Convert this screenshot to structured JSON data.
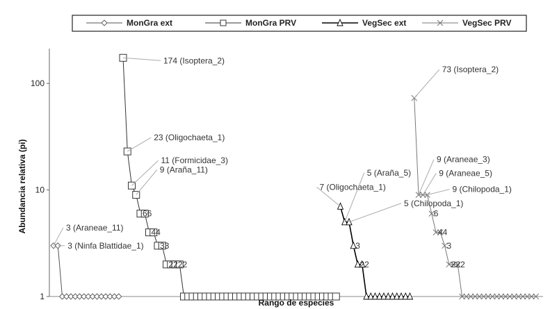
{
  "chart_data": {
    "type": "line",
    "xlabel": "Rango de especies",
    "ylabel": "Abundancia relativa (pi)",
    "y_scale": "log",
    "ylim": [
      1,
      200
    ],
    "y_ticks": [
      "1",
      "10",
      "100"
    ],
    "grid": false,
    "legend_position": "top",
    "series": [
      {
        "name": "MonGra ext",
        "marker": "diamond",
        "color": "#555555",
        "x": [
          1,
          2,
          3,
          4,
          5,
          6,
          7,
          8,
          9,
          10,
          11,
          12,
          13,
          14,
          15,
          16
        ],
        "values": [
          3,
          3,
          1,
          1,
          1,
          1,
          1,
          1,
          1,
          1,
          1,
          1,
          1,
          1,
          1,
          1
        ]
      },
      {
        "name": "MonGra PRV",
        "marker": "square",
        "color": "#333333",
        "x": [
          17,
          18,
          19,
          20,
          21,
          22,
          23,
          24,
          25,
          26,
          27,
          28,
          29,
          30,
          31,
          32,
          33,
          34,
          35,
          36,
          37,
          38,
          39,
          40,
          41,
          42,
          43,
          44,
          45,
          46,
          47,
          48,
          49,
          50,
          51,
          52,
          53,
          54,
          55,
          56,
          57,
          58,
          59,
          60,
          61,
          62,
          63,
          64,
          65,
          66
        ],
        "values": [
          174,
          23,
          11,
          9,
          6,
          6,
          4,
          4,
          3,
          3,
          2,
          2,
          2,
          2,
          1,
          1,
          1,
          1,
          1,
          1,
          1,
          1,
          1,
          1,
          1,
          1,
          1,
          1,
          1,
          1,
          1,
          1,
          1,
          1,
          1,
          1,
          1,
          1,
          1,
          1,
          1,
          1,
          1,
          1,
          1,
          1,
          1,
          1,
          1,
          1
        ]
      },
      {
        "name": "VegSec ext",
        "marker": "triangle",
        "color": "#000000",
        "x": [
          67,
          68,
          69,
          70,
          71,
          72,
          73,
          74,
          75,
          76,
          77,
          78,
          79,
          80,
          81,
          82,
          83
        ],
        "values": [
          7,
          5,
          5,
          3,
          2,
          2,
          1,
          1,
          1,
          1,
          1,
          1,
          1,
          1,
          1,
          1,
          1
        ]
      },
      {
        "name": "VegSec PRV",
        "marker": "cross",
        "color": "#777777",
        "x": [
          84,
          85,
          86,
          87,
          88,
          89,
          90,
          91,
          92,
          93,
          94,
          95,
          96,
          97,
          98,
          99,
          100,
          101,
          102,
          103,
          104,
          105,
          106,
          107,
          108,
          109,
          110,
          111,
          112
        ],
        "values": [
          73,
          9,
          9,
          9,
          6,
          4,
          4,
          3,
          2,
          2,
          2,
          1,
          1,
          1,
          1,
          1,
          1,
          1,
          1,
          1,
          1,
          1,
          1,
          1,
          1,
          1,
          1,
          1,
          1
        ]
      }
    ],
    "annotations": [
      {
        "text": "3 (Araneae_11)",
        "series": 0,
        "point": 0,
        "dx": 18,
        "dy": -26
      },
      {
        "text": "3 (Ninfa Blattidae_1)",
        "series": 0,
        "point": 1,
        "dx": 14,
        "dy": 0
      },
      {
        "text": "174 (Isoptera_2)",
        "series": 1,
        "point": 0,
        "dx": 58,
        "dy": 4
      },
      {
        "text": "23 (Oligochaeta_1)",
        "series": 1,
        "point": 1,
        "dx": 38,
        "dy": -20
      },
      {
        "text": "11 (Formicidae_3)",
        "series": 1,
        "point": 2,
        "dx": 42,
        "dy": -36
      },
      {
        "text": "9 (Araña_11)",
        "series": 1,
        "point": 3,
        "dx": 34,
        "dy": -36
      },
      {
        "text": "7 (Oligochaeta_1)",
        "series": 2,
        "point": 0,
        "dx": -30,
        "dy": -28
      },
      {
        "text": "5 (Araña_5)",
        "series": 2,
        "point": 1,
        "dx": 32,
        "dy": -71
      },
      {
        "text": "5 (Chilopoda_1)",
        "series": 2,
        "point": 2,
        "dx": 79,
        "dy": -27
      },
      {
        "text": "73 (Isoptera_2)",
        "series": 3,
        "point": 0,
        "dx": 40,
        "dy": -41
      },
      {
        "text": "9 (Araneae_3)",
        "series": 3,
        "point": 1,
        "dx": 26,
        "dy": -51
      },
      {
        "text": "9 (Araneae_5)",
        "series": 3,
        "point": 2,
        "dx": 23,
        "dy": -31
      },
      {
        "text": "9 (Chilopoda_1)",
        "series": 3,
        "point": 3,
        "dx": 36,
        "dy": -8
      }
    ],
    "point_labels": [
      {
        "text": "66",
        "series": 1,
        "point": 4
      },
      {
        "text": "44",
        "series": 1,
        "point": 6
      },
      {
        "text": "33",
        "series": 1,
        "point": 8
      },
      {
        "text": "2222",
        "series": 1,
        "point": 10
      },
      {
        "text": "3",
        "series": 2,
        "point": 3
      },
      {
        "text": "22",
        "series": 2,
        "point": 4
      },
      {
        "text": "6",
        "series": 3,
        "point": 4
      },
      {
        "text": "44",
        "series": 3,
        "point": 5
      },
      {
        "text": "3",
        "series": 3,
        "point": 7
      },
      {
        "text": "222",
        "series": 3,
        "point": 8
      }
    ]
  }
}
